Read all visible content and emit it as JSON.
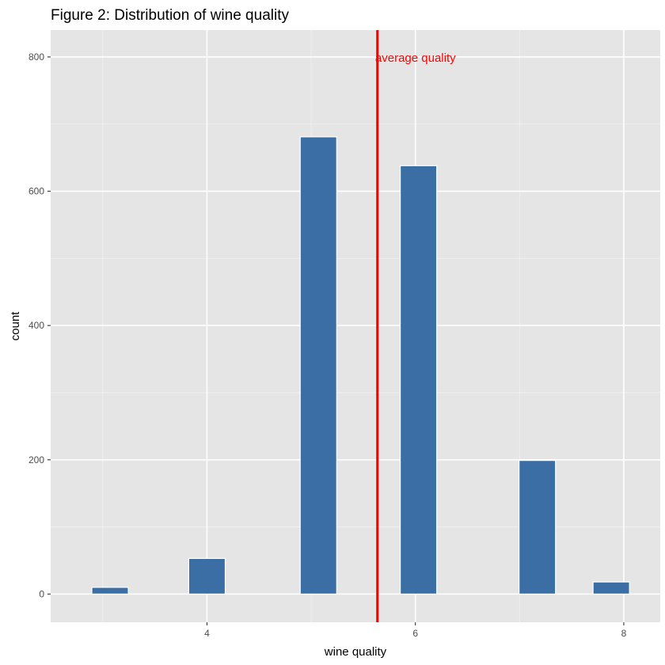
{
  "chart_data": {
    "type": "bar",
    "title": "Figure 2: Distribution of wine quality",
    "xlabel": "wine quality",
    "ylabel": "count",
    "xlim": [
      2.5,
      8.35
    ],
    "ylim": [
      -42,
      840
    ],
    "x_ticks": [
      4,
      6,
      8
    ],
    "x_minor_ticks": [
      3,
      5,
      7
    ],
    "y_ticks": [
      0,
      200,
      400,
      600,
      800
    ],
    "y_minor_ticks": [
      100,
      300,
      500,
      700
    ],
    "bin_width": 0.35,
    "bars": [
      {
        "x": 3.07,
        "count": 10
      },
      {
        "x": 4.0,
        "count": 53
      },
      {
        "x": 5.07,
        "count": 681
      },
      {
        "x": 6.03,
        "count": 638
      },
      {
        "x": 7.17,
        "count": 199
      },
      {
        "x": 7.88,
        "count": 18
      }
    ],
    "vline": {
      "x": 5.636,
      "label": "average quality",
      "color": "#ff0000"
    },
    "bar_fill": "#3a6ea5",
    "bar_stroke": "#ffffff",
    "panel_background": "#e5e5e5",
    "grid": true,
    "legend": "none"
  }
}
